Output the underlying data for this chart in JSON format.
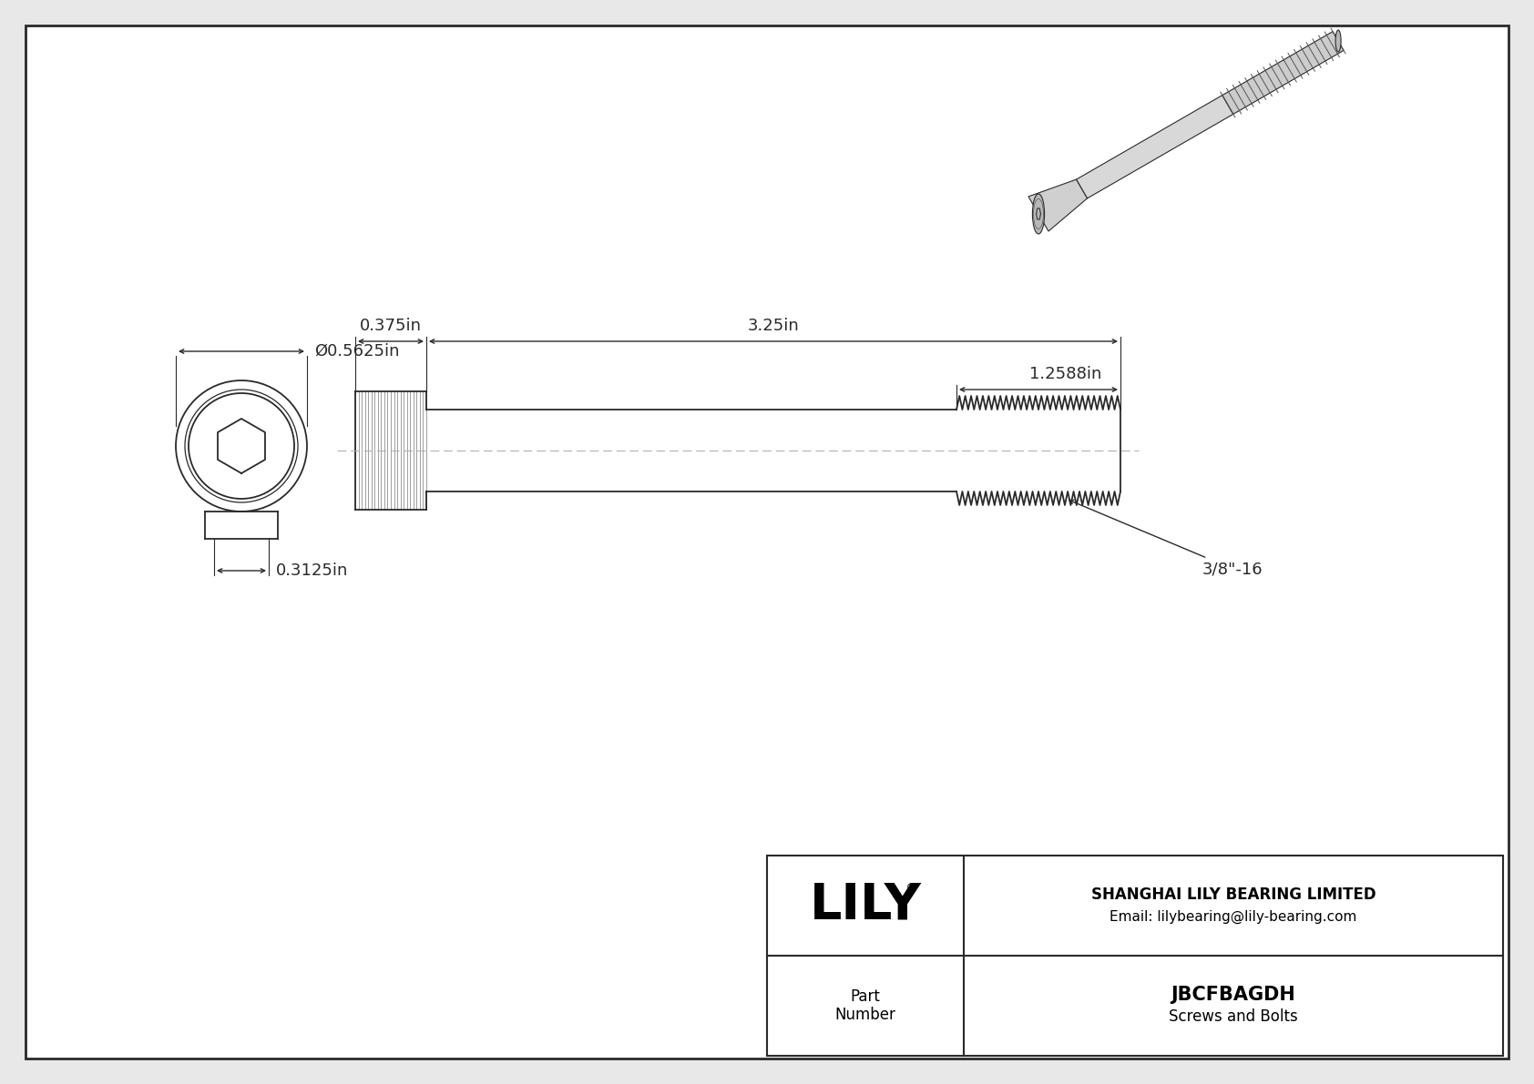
{
  "bg_color": "#e8e8e8",
  "drawing_bg": "#ffffff",
  "line_color": "#2a2a2a",
  "dim_color": "#2a2a2a",
  "title": "JBCFBAGDH",
  "subtitle": "Screws and Bolts",
  "company": "SHANGHAI LILY BEARING LIMITED",
  "email": "Email: lilybearing@lily-bearing.com",
  "part_label": "Part\nNumber",
  "lily_logo": "LILY",
  "dim_total_length": "3.25in",
  "dim_head_width": "0.375in",
  "dim_thread_length": "1.2588in",
  "dim_head_diameter": "Ø0.5625in",
  "dim_hex_size": "0.3125in",
  "thread_spec": "3/8\"-16"
}
